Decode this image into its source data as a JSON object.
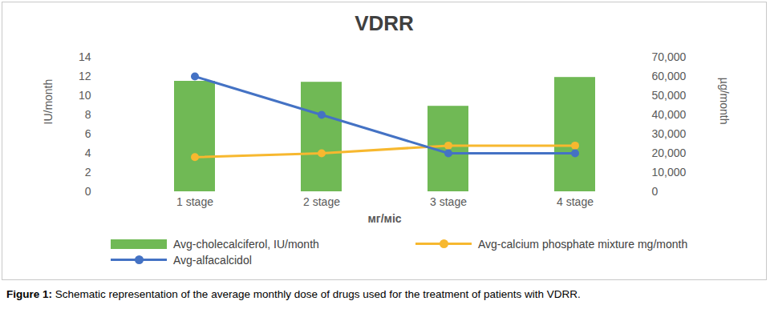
{
  "chart_data": {
    "type": "bar",
    "title": "VDRR",
    "caption": "Figure 1: Schematic representation of the average monthly dose of drugs used for the treatment of patients with VDRR.",
    "x_label": "мг/міс",
    "y_label": "IU/month",
    "y2_label": "µg/month",
    "categories": [
      "1 stage",
      "2 stage",
      "3 stage",
      "4 stage"
    ],
    "ylim": [
      0,
      14
    ],
    "yticks": [
      0,
      2,
      4,
      6,
      8,
      10,
      12,
      14
    ],
    "y2lim": [
      0,
      70000
    ],
    "y2ticks": [
      0,
      {
        "value": 10000,
        "label": "10,000"
      },
      {
        "value": 20000,
        "label": "20,000"
      },
      {
        "value": 30000,
        "label": "30,000"
      },
      {
        "value": 40000,
        "label": "40,000"
      },
      {
        "value": 50000,
        "label": "50,000"
      },
      {
        "value": 60000,
        "label": "60,000"
      },
      {
        "value": 70000,
        "label": "70,000"
      }
    ],
    "grid": false,
    "legend": "bottom",
    "series": [
      {
        "name": "Avg-cholecalciferol, IU/month",
        "type": "bar",
        "color": "#70b955",
        "values": [
          11.5,
          11.4,
          8.9,
          11.9
        ]
      },
      {
        "name": "Avg-calcium phosphate mixture mg/month",
        "type": "line",
        "marker": "circle",
        "color": "#f7b82f",
        "axis": "y2",
        "values": [
          18000,
          20000,
          24000,
          24000
        ]
      },
      {
        "name": "Avg-alfacalcidol",
        "type": "line",
        "marker": "circle",
        "color": "#4472c4",
        "values": [
          12,
          8,
          4,
          4
        ]
      }
    ]
  }
}
